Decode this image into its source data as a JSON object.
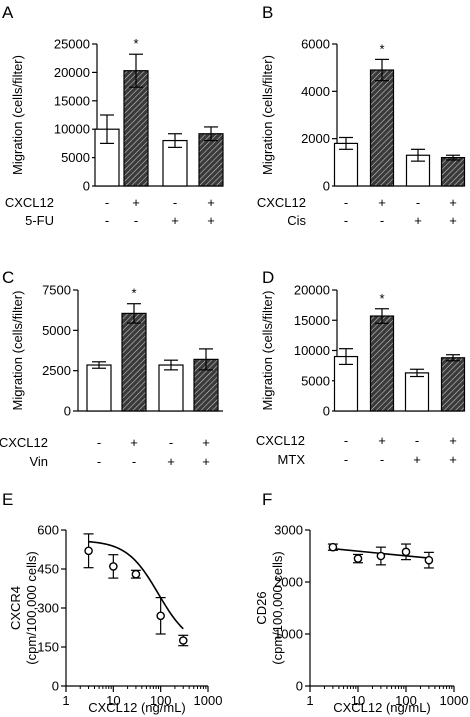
{
  "figure": {
    "panel_letters": [
      "A",
      "B",
      "C",
      "D",
      "E",
      "F"
    ],
    "treatment_row_label": "CXCL12",
    "plus": "+",
    "minus": "-",
    "significance_mark": "*"
  },
  "chart_data": [
    {
      "panel": "A",
      "type": "bar",
      "ylabel": "Migration (cells/filter)",
      "ylim": [
        0,
        25000
      ],
      "yticks": [
        "0",
        "5000",
        "10000",
        "15000",
        "20000",
        "25000"
      ],
      "categories": [
        "CXCL12- / 5-FU-",
        "CXCL12+ / 5-FU-",
        "CXCL12- / 5-FU+",
        "CXCL12+ / 5-FU+"
      ],
      "values": [
        10000,
        20300,
        8000,
        9200
      ],
      "errors": [
        2500,
        2900,
        1200,
        1200
      ],
      "fills": [
        "open",
        "hatched",
        "open",
        "hatched"
      ],
      "significant": [
        false,
        true,
        false,
        false
      ],
      "conditions": [
        {
          "label": "CXCL12",
          "signs": [
            "-",
            "+",
            "-",
            "+"
          ]
        },
        {
          "label": "5-FU",
          "signs": [
            "-",
            "-",
            "+",
            "+"
          ]
        }
      ]
    },
    {
      "panel": "B",
      "type": "bar",
      "ylabel": "Migration (cells/filter)",
      "ylim": [
        0,
        6000
      ],
      "yticks": [
        "0",
        "2000",
        "4000",
        "6000"
      ],
      "categories": [
        "CXCL12- / Cis-",
        "CXCL12+ / Cis-",
        "CXCL12- / Cis+",
        "CXCL12+ / Cis+"
      ],
      "values": [
        1800,
        4900,
        1300,
        1200
      ],
      "errors": [
        250,
        450,
        250,
        100
      ],
      "fills": [
        "open",
        "hatched",
        "open",
        "hatched"
      ],
      "significant": [
        false,
        true,
        false,
        false
      ],
      "conditions": [
        {
          "label": "CXCL12",
          "signs": [
            "-",
            "+",
            "-",
            "+"
          ]
        },
        {
          "label": "Cis",
          "signs": [
            "-",
            "-",
            "+",
            "+"
          ]
        }
      ]
    },
    {
      "panel": "C",
      "type": "bar",
      "ylabel": "Migration (cells/filter)",
      "ylim": [
        0,
        7500
      ],
      "yticks": [
        "0",
        "2500",
        "5000",
        "7500"
      ],
      "categories": [
        "CXCL12- / Vin-",
        "CXCL12+ / Vin-",
        "CXCL12- / Vin+",
        "CXCL12+ / Vin+"
      ],
      "values": [
        2850,
        6050,
        2850,
        3200
      ],
      "errors": [
        200,
        600,
        300,
        650
      ],
      "fills": [
        "open",
        "hatched",
        "open",
        "hatched"
      ],
      "significant": [
        false,
        true,
        false,
        false
      ],
      "conditions": [
        {
          "label": "CXCL12",
          "signs": [
            "-",
            "+",
            "-",
            "+"
          ]
        },
        {
          "label": "Vin",
          "signs": [
            "-",
            "-",
            "+",
            "+"
          ]
        }
      ]
    },
    {
      "panel": "D",
      "type": "bar",
      "ylabel": "Migration (cells/filter)",
      "ylim": [
        0,
        20000
      ],
      "yticks": [
        "0",
        "5000",
        "10000",
        "15000",
        "20000"
      ],
      "categories": [
        "CXCL12- / MTX-",
        "CXCL12+ / MTX-",
        "CXCL12- / MTX+",
        "CXCL12+ / MTX+"
      ],
      "values": [
        9000,
        15700,
        6300,
        8800
      ],
      "errors": [
        1300,
        1200,
        600,
        500
      ],
      "fills": [
        "open",
        "hatched",
        "open",
        "hatched"
      ],
      "significant": [
        false,
        true,
        false,
        false
      ],
      "conditions": [
        {
          "label": "CXCL12",
          "signs": [
            "-",
            "+",
            "-",
            "+"
          ]
        },
        {
          "label": "MTX",
          "signs": [
            "-",
            "-",
            "+",
            "+"
          ]
        }
      ]
    },
    {
      "panel": "E",
      "type": "scatter",
      "ylabel": "CXCR4",
      "ylabel2": "(cpm/100,000 cells)",
      "xlabel": "CXCL12 (ng/mL)",
      "xscale": "log",
      "xlim": [
        1,
        1000
      ],
      "ylim": [
        0,
        600
      ],
      "xticks": [
        "1",
        "10",
        "100",
        "1000"
      ],
      "yticks": [
        "0",
        "150",
        "300",
        "450",
        "600"
      ],
      "x": [
        3,
        10,
        30,
        100,
        300
      ],
      "y": [
        520,
        460,
        430,
        270,
        175
      ],
      "errors": [
        65,
        45,
        15,
        70,
        20
      ],
      "fit": "sigmoidal curve"
    },
    {
      "panel": "F",
      "type": "scatter",
      "ylabel": "CD26",
      "ylabel2": "(cpm/100,000 cells)",
      "xlabel": "CXCL12 (ng/mL)",
      "xscale": "log",
      "xlim": [
        1,
        1000
      ],
      "ylim": [
        0,
        3000
      ],
      "xticks": [
        "1",
        "10",
        "100",
        "1000"
      ],
      "yticks": [
        "0",
        "1000",
        "2000",
        "3000"
      ],
      "x": [
        3,
        10,
        30,
        100,
        300
      ],
      "y": [
        2670,
        2450,
        2500,
        2580,
        2420
      ],
      "errors": [
        60,
        80,
        170,
        150,
        150
      ],
      "fit": "linear"
    }
  ]
}
